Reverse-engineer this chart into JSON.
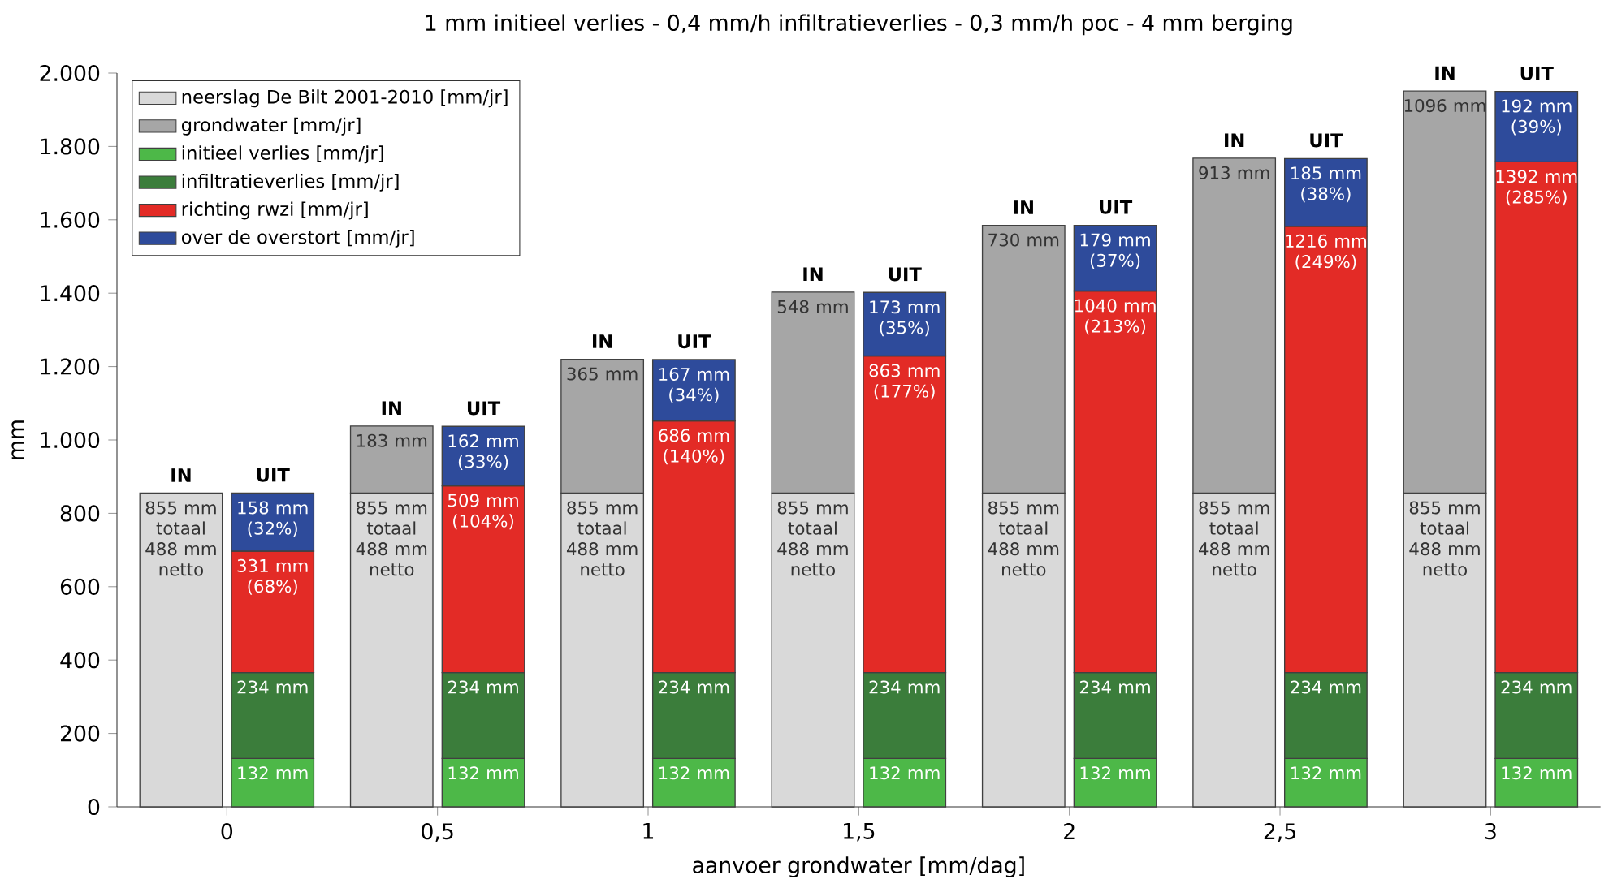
{
  "chart_data": {
    "type": "bar",
    "stacked": true,
    "title": "1 mm initieel verlies  -  0,4 mm/h infiltratieverlies  -  0,3 mm/h poc  -  4 mm berging",
    "xlabel": "aanvoer grondwater [mm/dag]",
    "ylabel": "mm",
    "categories": [
      null,
      null,
      null,
      null,
      null,
      null,
      null,
      null,
      null,
      null,
      null,
      null,
      null,
      null
    ],
    "annotations": [
      "0",
      "0,5",
      "1",
      "1,5",
      "2",
      "2,5",
      "3",
      "IN",
      "UIT",
      "IN",
      "UIT",
      "IN",
      "UIT",
      "IN",
      "UIT",
      "IN",
      "UIT",
      "IN",
      "UIT",
      "IN",
      "UIT"
    ],
    "ylim": [
      0,
      2000
    ],
    "yticks": [
      0,
      200,
      400,
      600,
      800,
      {
        "value": 1000,
        "label": "1.000"
      },
      {
        "value": 1200,
        "label": "1.200"
      },
      {
        "value": 1400,
        "label": "1.400"
      },
      {
        "value": 1600,
        "label": "1.600"
      },
      {
        "value": 1800,
        "label": "1.800"
      },
      {
        "value": 2000,
        "label": "2.000"
      }
    ],
    "legend": "top left",
    "series": [
      {
        "name": "neerslag De Bilt 2001-2010 [mm/jr]",
        "color": "#d9d9d9",
        "values": [
          855,
          null,
          855,
          null,
          855,
          null,
          855,
          null,
          855,
          null,
          855,
          null,
          855,
          null
        ],
        "value_labels": [
          "855 mm totaal 488 mm netto",
          null,
          "855 mm totaal 488 mm netto",
          null,
          "855 mm totaal 488 mm netto",
          null,
          "855 mm totaal 488 mm netto",
          null,
          "855 mm totaal 488 mm netto",
          null,
          "855 mm totaal 488 mm netto",
          null,
          "855 mm totaal 488 mm netto",
          null
        ]
      },
      {
        "name": "grondwater [mm/jr]",
        "color": "#a6a6a6",
        "values": [
          0,
          null,
          183,
          null,
          365,
          null,
          548,
          null,
          730,
          null,
          913,
          null,
          1096,
          null
        ],
        "value_labels": [
          null,
          null,
          "183 mm",
          null,
          "365 mm",
          null,
          "548 mm",
          null,
          "730 mm",
          null,
          "913 mm",
          null,
          "1096 mm",
          null
        ]
      },
      {
        "name": "initieel verlies [mm/jr]",
        "color": "#4db848",
        "values": [
          null,
          132,
          null,
          132,
          null,
          132,
          null,
          132,
          null,
          132,
          null,
          132,
          null,
          132
        ],
        "value_labels": [
          null,
          "132 mm",
          null,
          "132 mm",
          null,
          "132 mm",
          null,
          "132 mm",
          null,
          "132 mm",
          null,
          "132 mm",
          null,
          "132 mm"
        ]
      },
      {
        "name": "infiltratieverlies [mm/jr]",
        "color": "#3b7d3b",
        "values": [
          null,
          234,
          null,
          234,
          null,
          234,
          null,
          234,
          null,
          234,
          null,
          234,
          null,
          234
        ],
        "value_labels": [
          null,
          "234 mm",
          null,
          "234 mm",
          null,
          "234 mm",
          null,
          "234 mm",
          null,
          "234 mm",
          null,
          "234 mm",
          null,
          "234 mm"
        ]
      },
      {
        "name": "richting rwzi [mm/jr]",
        "color": "#e32b26",
        "values": [
          null,
          331,
          null,
          509,
          null,
          686,
          null,
          863,
          null,
          1040,
          null,
          1216,
          null,
          1392
        ],
        "value_labels": [
          null,
          "331 mm (68%)",
          null,
          "509 mm (104%)",
          null,
          "686 mm (140%)",
          null,
          "863 mm (177%)",
          null,
          "1040 mm (213%)",
          null,
          "1216 mm (249%)",
          null,
          "1392 mm (285%)"
        ]
      },
      {
        "name": "over de overstort [mm/jr]",
        "color": "#2e4b9b",
        "values": [
          null,
          158,
          null,
          162,
          null,
          167,
          null,
          173,
          null,
          179,
          null,
          185,
          null,
          192
        ],
        "value_labels": [
          null,
          "158 mm (32%)",
          null,
          "162 mm (33%)",
          null,
          "167 mm (34%)",
          null,
          "173 mm (35%)",
          null,
          "179 mm (37%)",
          null,
          "185 mm (38%)",
          null,
          "192 mm (39%)"
        ]
      }
    ]
  }
}
